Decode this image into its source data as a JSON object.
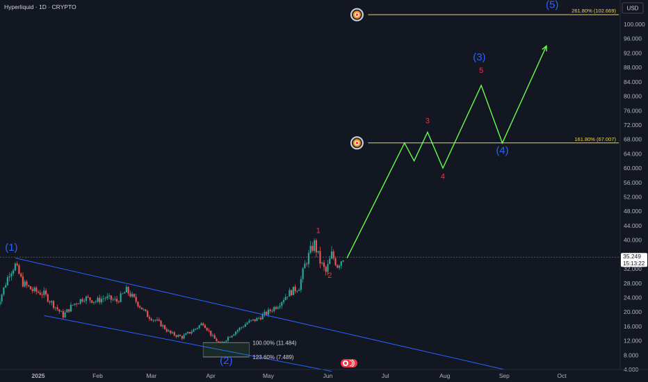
{
  "header": {
    "title": "Hyperliquid · 1D · CRYPTO",
    "currency": "USD"
  },
  "price_tag": {
    "price": "35.249",
    "countdown": "15:13:22"
  },
  "colors": {
    "bg": "#131722",
    "up": "#26a69a",
    "down": "#ef5350",
    "projection": "#66ff4d",
    "channel": "#2962ff",
    "wave_blue": "#2962ff",
    "wave_red": "#f23645",
    "fib": "#f5d547"
  },
  "chart_data": {
    "type": "candlestick",
    "symbol": "Hyperliquid",
    "timeframe": "1D",
    "x_tick_labels": [
      "2025",
      "Feb",
      "Mar",
      "Apr",
      "May",
      "Jun",
      "Jul",
      "Aug",
      "Sep",
      "Oct"
    ],
    "y_ticks": [
      4,
      8,
      12,
      16,
      20,
      24,
      28,
      32,
      40,
      44,
      48,
      52,
      56,
      60,
      64,
      68,
      72,
      76,
      80,
      84,
      88,
      92,
      96,
      100
    ],
    "y_tick_labels": [
      "4.000",
      "8.000",
      "12.000",
      "16.000",
      "20.000",
      "24.000",
      "28.000",
      "32.000",
      "40.000",
      "44.000",
      "48.000",
      "52.000",
      "56.000",
      "60.000",
      "64.000",
      "68.000",
      "72.000",
      "76.000",
      "80.000",
      "84.000",
      "88.000",
      "92.000",
      "96.000",
      "100.000"
    ],
    "ylim": [
      4,
      104
    ],
    "price_anchors": [
      {
        "date": "2024-12-10",
        "price": 20
      },
      {
        "date": "2024-12-14",
        "price": 25
      },
      {
        "date": "2024-12-18",
        "price": 31
      },
      {
        "date": "2024-12-21",
        "price": 33
      },
      {
        "date": "2024-12-25",
        "price": 28
      },
      {
        "date": "2024-12-30",
        "price": 26
      },
      {
        "date": "2025-01-05",
        "price": 25
      },
      {
        "date": "2025-01-10",
        "price": 22
      },
      {
        "date": "2025-01-15",
        "price": 19
      },
      {
        "date": "2025-01-20",
        "price": 22
      },
      {
        "date": "2025-01-26",
        "price": 24
      },
      {
        "date": "2025-02-01",
        "price": 23
      },
      {
        "date": "2025-02-06",
        "price": 24
      },
      {
        "date": "2025-02-12",
        "price": 23
      },
      {
        "date": "2025-02-17",
        "price": 26
      },
      {
        "date": "2025-02-22",
        "price": 23
      },
      {
        "date": "2025-02-28",
        "price": 19
      },
      {
        "date": "2025-03-06",
        "price": 17
      },
      {
        "date": "2025-03-12",
        "price": 14
      },
      {
        "date": "2025-03-18",
        "price": 13
      },
      {
        "date": "2025-03-24",
        "price": 15
      },
      {
        "date": "2025-03-29",
        "price": 17
      },
      {
        "date": "2025-04-03",
        "price": 13
      },
      {
        "date": "2025-04-07",
        "price": 11
      },
      {
        "date": "2025-04-11",
        "price": 13
      },
      {
        "date": "2025-04-16",
        "price": 15
      },
      {
        "date": "2025-04-21",
        "price": 17
      },
      {
        "date": "2025-04-26",
        "price": 18
      },
      {
        "date": "2025-05-02",
        "price": 20
      },
      {
        "date": "2025-05-07",
        "price": 22
      },
      {
        "date": "2025-05-12",
        "price": 25
      },
      {
        "date": "2025-05-18",
        "price": 27
      },
      {
        "date": "2025-05-21",
        "price": 33
      },
      {
        "date": "2025-05-24",
        "price": 37
      },
      {
        "date": "2025-05-26",
        "price": 39
      },
      {
        "date": "2025-05-29",
        "price": 34
      },
      {
        "date": "2025-06-01",
        "price": 31
      },
      {
        "date": "2025-06-04",
        "price": 36
      },
      {
        "date": "2025-06-07",
        "price": 33
      },
      {
        "date": "2025-06-10",
        "price": 35.249
      }
    ],
    "projection_path": [
      {
        "date": "2025-06-11",
        "price": 35
      },
      {
        "date": "2025-07-11",
        "price": 67
      },
      {
        "date": "2025-07-16",
        "price": 62
      },
      {
        "date": "2025-07-23",
        "price": 70
      },
      {
        "date": "2025-07-31",
        "price": 60
      },
      {
        "date": "2025-08-20",
        "price": 83
      },
      {
        "date": "2025-08-31",
        "price": 67
      },
      {
        "date": "2025-09-23",
        "price": 94
      }
    ],
    "channel": {
      "upper": [
        {
          "date": "2024-12-20",
          "price": 35
        },
        {
          "date": "2025-09-01",
          "price": 4
        }
      ],
      "lower": [
        {
          "date": "2025-01-04",
          "price": 19
        },
        {
          "date": "2025-06-03",
          "price": 3.5
        }
      ]
    },
    "wave_labels_major": [
      {
        "text": "(1)",
        "date": "2024-12-18",
        "price": 37
      },
      {
        "text": "(2)",
        "date": "2025-04-09",
        "price": 5.5
      },
      {
        "text": "(3)",
        "date": "2025-08-19",
        "price": 90
      },
      {
        "text": "(4)",
        "date": "2025-08-31",
        "price": 64
      },
      {
        "text": "(5)",
        "date": "2025-09-26",
        "price": 104.5
      }
    ],
    "wave_labels_minor": [
      {
        "text": "1",
        "date": "2025-05-27",
        "price": 42
      },
      {
        "text": "2",
        "date": "2025-06-02",
        "price": 29.5
      },
      {
        "text": "3",
        "date": "2025-07-23",
        "price": 72.5
      },
      {
        "text": "4",
        "date": "2025-07-31",
        "price": 57
      },
      {
        "text": "5",
        "date": "2025-08-20",
        "price": 86.5
      }
    ],
    "fib_levels": [
      {
        "label": "261.80% (102.669)",
        "value": 102.669
      },
      {
        "label": "161.80% (67.007)",
        "value": 67.007
      },
      {
        "label": "100.00% (11.484)",
        "value": 11.484
      },
      {
        "label": "123.60% (7.489)",
        "value": 7.489
      }
    ]
  }
}
